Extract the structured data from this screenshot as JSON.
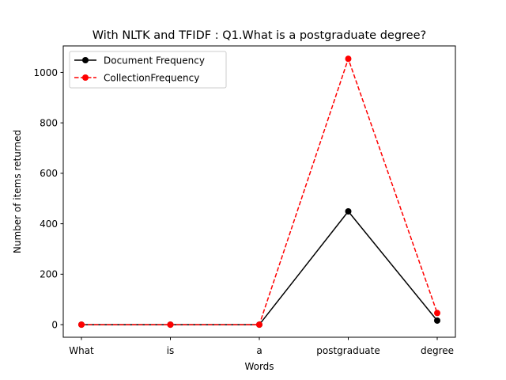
{
  "chart_data": {
    "type": "line",
    "title": "With NLTK and TFIDF : Q1.What is a postgraduate degree?",
    "xlabel": "Words",
    "ylabel": "Number of items returned",
    "categories": [
      "What",
      "is",
      "a",
      "postgraduate",
      "degree"
    ],
    "ylim": [
      -50,
      1105
    ],
    "yticks": [
      0,
      200,
      400,
      600,
      800,
      1000
    ],
    "grid": false,
    "legend_position": "top-left",
    "series": [
      {
        "name": "Document Frequency",
        "values": [
          0,
          0,
          0,
          449,
          16
        ],
        "color": "#000000",
        "line_style": "solid",
        "marker": "circle"
      },
      {
        "name": "CollectionFrequency",
        "values": [
          0,
          0,
          0,
          1054,
          46
        ],
        "color": "#ff0000",
        "line_style": "dashed",
        "marker": "circle"
      }
    ]
  }
}
